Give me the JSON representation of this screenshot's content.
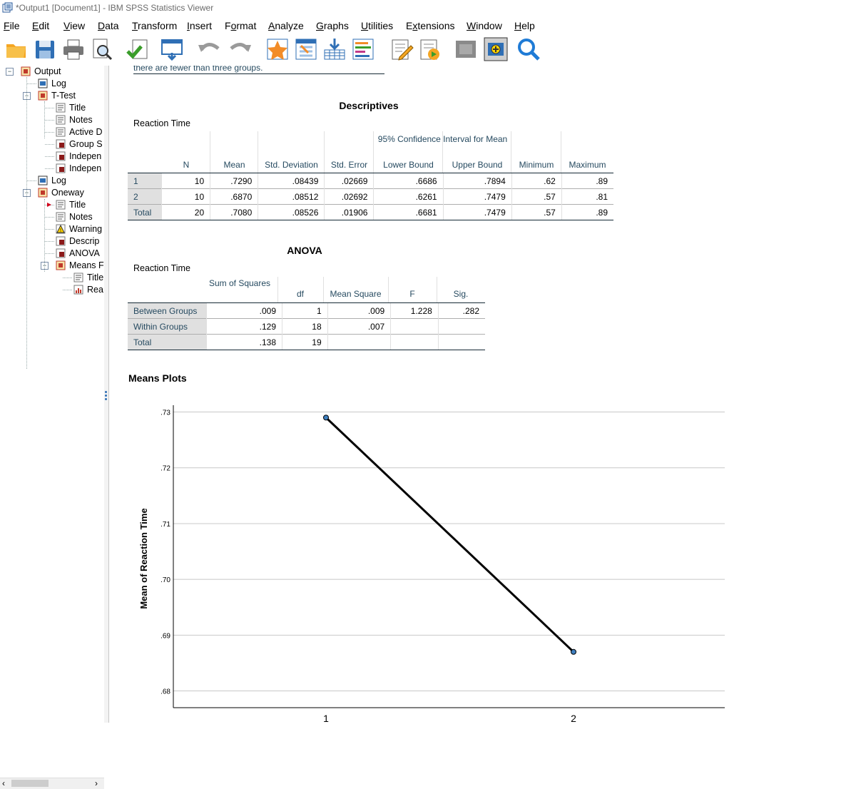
{
  "window": {
    "title": "*Output1 [Document1] - IBM SPSS Statistics Viewer"
  },
  "menu": [
    {
      "label": "File",
      "u": "F"
    },
    {
      "label": "Edit",
      "u": "E"
    },
    {
      "label": "View",
      "u": "V"
    },
    {
      "label": "Data",
      "u": "D"
    },
    {
      "label": "Transform",
      "u": "T"
    },
    {
      "label": "Insert",
      "u": "I"
    },
    {
      "label": "Format",
      "u": "o"
    },
    {
      "label": "Analyze",
      "u": "A"
    },
    {
      "label": "Graphs",
      "u": "G"
    },
    {
      "label": "Utilities",
      "u": "U"
    },
    {
      "label": "Extensions",
      "u": "x"
    },
    {
      "label": "Window",
      "u": "W"
    },
    {
      "label": "Help",
      "u": "H"
    }
  ],
  "toolbar_icons": [
    "open-folder-icon",
    "save-icon",
    "print-icon",
    "print-preview-icon",
    "export-icon",
    "goto-data-icon",
    "undo-icon",
    "redo-icon",
    "goto-case-icon",
    "select-cases-icon",
    "insert-output-icon",
    "variables-icon",
    "edit-text-icon",
    "run-script-icon",
    "designate-window-icon",
    "zoom-in-icon",
    "search-icon"
  ],
  "outline": {
    "items": [
      {
        "label": "Output",
        "level": 0,
        "icon": "output-book-icon"
      },
      {
        "label": "Log",
        "level": 1,
        "icon": "log-icon"
      },
      {
        "label": "T-Test",
        "level": 1,
        "icon": "procedure-book-icon"
      },
      {
        "label": "Title",
        "level": 2,
        "icon": "title-icon"
      },
      {
        "label": "Notes",
        "level": 2,
        "icon": "notes-icon"
      },
      {
        "label": "Active D",
        "level": 2,
        "icon": "active-dataset-icon"
      },
      {
        "label": "Group S",
        "level": 2,
        "icon": "table-icon"
      },
      {
        "label": "Indepen",
        "level": 2,
        "icon": "table-icon"
      },
      {
        "label": "Indepen",
        "level": 2,
        "icon": "table-icon"
      },
      {
        "label": "Log",
        "level": 1,
        "icon": "log-icon"
      },
      {
        "label": "Oneway",
        "level": 1,
        "icon": "procedure-book-icon"
      },
      {
        "label": "Title",
        "level": 2,
        "icon": "title-icon"
      },
      {
        "label": "Notes",
        "level": 2,
        "icon": "notes-icon"
      },
      {
        "label": "Warning",
        "level": 2,
        "icon": "warning-icon"
      },
      {
        "label": "Descrip",
        "level": 2,
        "icon": "table-icon"
      },
      {
        "label": "ANOVA",
        "level": 2,
        "icon": "table-icon"
      },
      {
        "label": "Means F",
        "level": 2,
        "icon": "procedure-book-icon"
      },
      {
        "label": "Title",
        "level": 3,
        "icon": "title-icon"
      },
      {
        "label": "Rea",
        "level": 3,
        "icon": "chart-icon"
      }
    ]
  },
  "warning_fragment": "there are fewer than three groups.",
  "descriptives": {
    "title": "Descriptives",
    "variable": "Reaction Time",
    "ci_header": "95% Confidence Interval for Mean",
    "columns": [
      "N",
      "Mean",
      "Std. Deviation",
      "Std. Error",
      "Lower Bound",
      "Upper Bound",
      "Minimum",
      "Maximum"
    ],
    "rows": [
      {
        "label": "1",
        "values": [
          "10",
          ".7290",
          ".08439",
          ".02669",
          ".6686",
          ".7894",
          ".62",
          ".89"
        ]
      },
      {
        "label": "2",
        "values": [
          "10",
          ".6870",
          ".08512",
          ".02692",
          ".6261",
          ".7479",
          ".57",
          ".81"
        ]
      },
      {
        "label": "Total",
        "values": [
          "20",
          ".7080",
          ".08526",
          ".01906",
          ".6681",
          ".7479",
          ".57",
          ".89"
        ]
      }
    ]
  },
  "anova": {
    "title": "ANOVA",
    "variable": "Reaction Time",
    "columns": [
      "Sum of Squares",
      "df",
      "Mean Square",
      "F",
      "Sig."
    ],
    "rows": [
      {
        "label": "Between Groups",
        "values": [
          ".009",
          "1",
          ".009",
          "1.228",
          ".282"
        ]
      },
      {
        "label": "Within Groups",
        "values": [
          ".129",
          "18",
          ".007",
          "",
          ""
        ]
      },
      {
        "label": "Total",
        "values": [
          ".138",
          "19",
          "",
          "",
          ""
        ]
      }
    ]
  },
  "means_plot_heading": "Means Plots",
  "chart_data": {
    "type": "line",
    "title": "",
    "ylabel": "Mean of Reaction Time",
    "xlabel": "",
    "categories": [
      "1",
      "2"
    ],
    "series": [
      {
        "values": [
          0.729,
          0.687
        ]
      }
    ],
    "ylim": [
      0.677,
      0.7325
    ],
    "yticks": [
      ".68",
      ".69",
      ".70",
      ".71",
      ".72",
      ".73"
    ],
    "ytick_values": [
      0.68,
      0.69,
      0.7,
      0.71,
      0.72,
      0.73
    ],
    "grid": true,
    "colors": {
      "line": "#000000",
      "marker": "#3f7fbf",
      "grid": "#c8c8c8"
    }
  }
}
